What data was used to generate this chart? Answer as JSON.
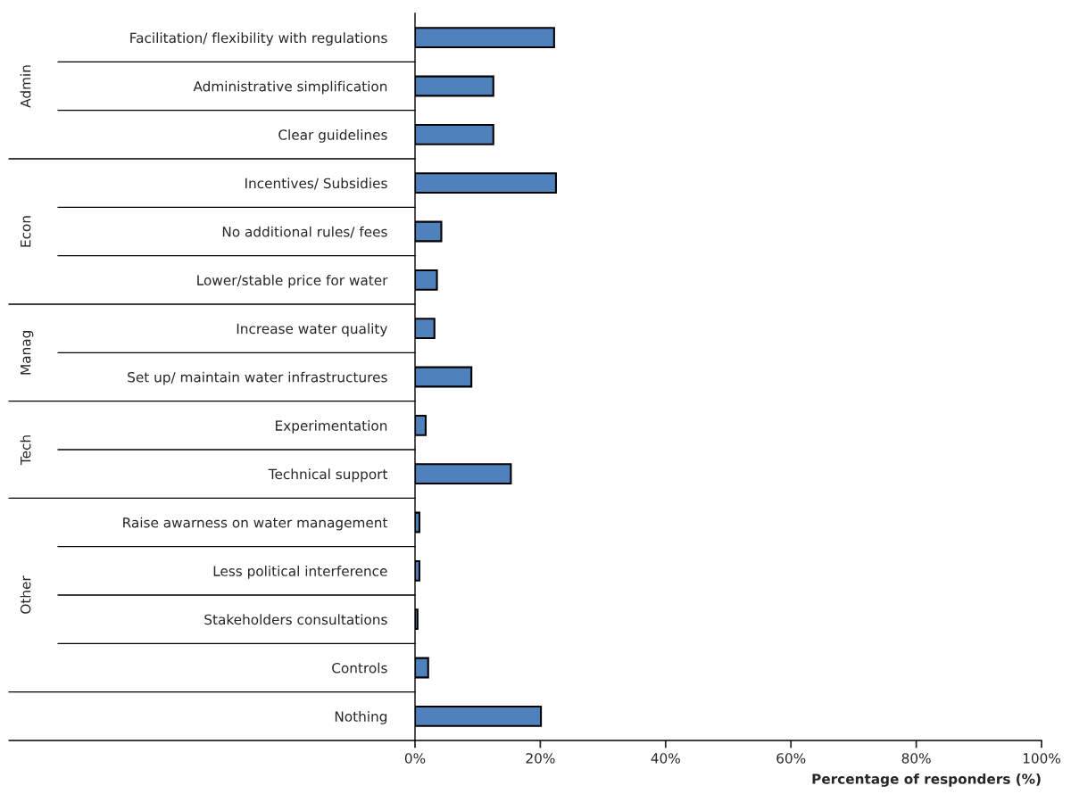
{
  "chart_data": {
    "type": "bar",
    "orientation": "horizontal",
    "xlabel": "Percentage of responders (%)",
    "categories": [
      "Facilitation/ flexibility with regulations",
      "Administrative simplification",
      "Clear guidelines",
      "Incentives/ Subsidies",
      "No additional rules/ fees",
      "Lower/stable price for water",
      "Increase water quality",
      "Set up/ maintain water infrastructures",
      "Experimentation",
      "Technical support",
      "Raise awarness on water management",
      "Less political interference",
      "Stakeholders consultations",
      "Controls",
      "Nothing"
    ],
    "values": [
      22.2,
      12.5,
      12.5,
      22.5,
      4.2,
      3.5,
      3.1,
      9.0,
      1.7,
      15.3,
      0.7,
      0.7,
      0.4,
      2.1,
      20.1
    ],
    "color": "#4f81bd",
    "xlim": [
      0,
      100
    ],
    "xticks": [
      {
        "value": 0,
        "label": "0%"
      },
      {
        "value": 20,
        "label": "20%"
      },
      {
        "value": 40,
        "label": "40%"
      },
      {
        "value": 60,
        "label": "60%"
      },
      {
        "value": 80,
        "label": "80%"
      },
      {
        "value": 100,
        "label": "100%"
      }
    ],
    "annotations": [
      "Admin",
      "Econ",
      "Manag",
      "Tech",
      "Other"
    ],
    "grid": false,
    "legend": false
  }
}
